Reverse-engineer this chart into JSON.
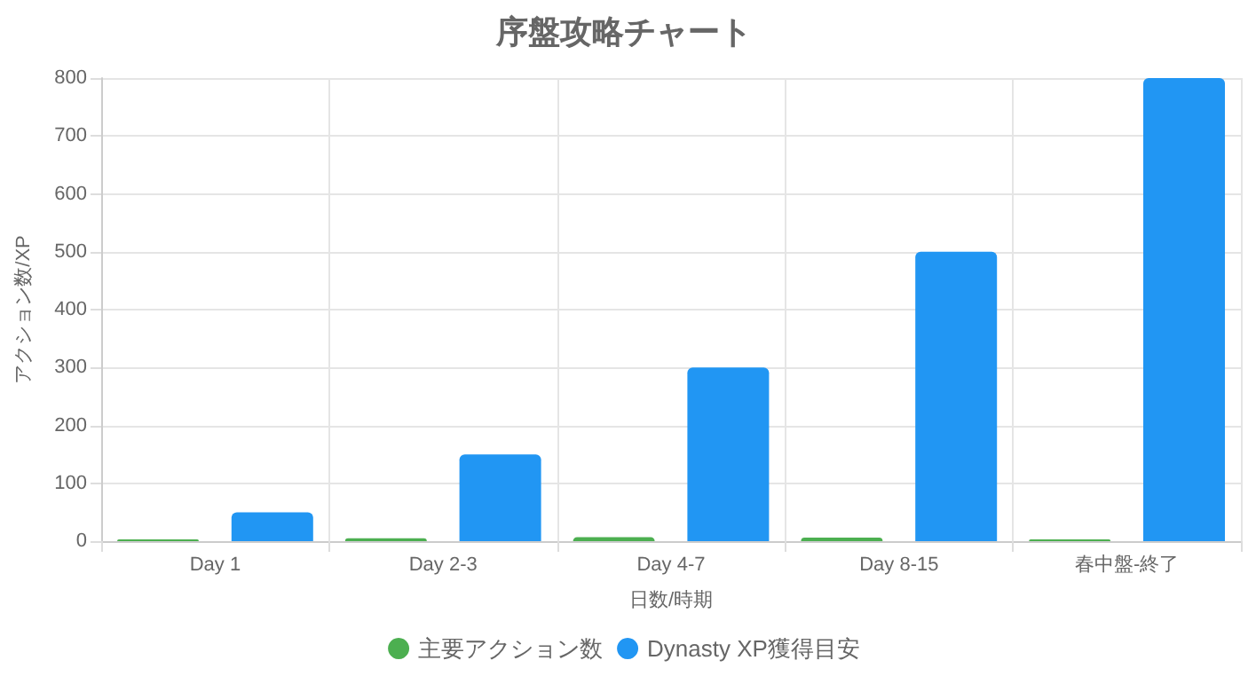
{
  "chart_data": {
    "type": "bar",
    "title": "序盤攻略チャート",
    "xlabel": "日数/時期",
    "ylabel": "アクション数/XP",
    "categories": [
      "Day 1",
      "Day 2-3",
      "Day 4-7",
      "Day 8-15",
      "春中盤-終了"
    ],
    "series": [
      {
        "name": "主要アクション数",
        "color": "#4caf50",
        "values": [
          3,
          5,
          7,
          6,
          3
        ]
      },
      {
        "name": "Dynasty XP獲得目安",
        "color": "#2196f3",
        "values": [
          50,
          150,
          300,
          500,
          800
        ]
      }
    ],
    "ylim": [
      0,
      800
    ],
    "yticks": [
      0,
      100,
      200,
      300,
      400,
      500,
      600,
      700,
      800
    ],
    "grid": true,
    "legend": "bottom"
  }
}
